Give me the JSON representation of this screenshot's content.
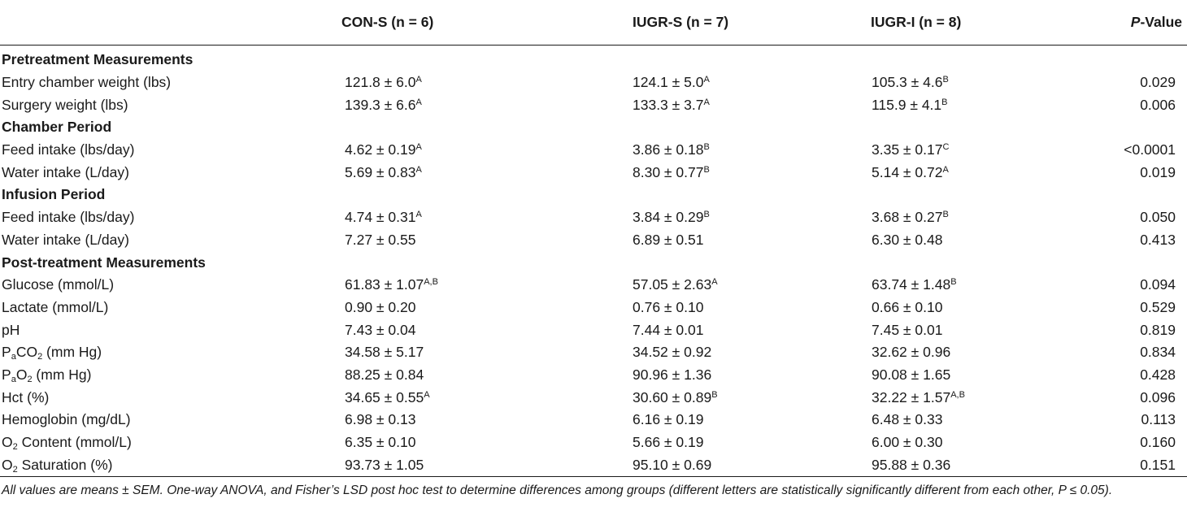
{
  "header": {
    "col_label": "",
    "col1": "CON-S (n = 6)",
    "col2": "IUGR-S (n = 7)",
    "col3": "IUGR-I (n = 8)",
    "col4_italic": "P",
    "col4_rest": "-Value"
  },
  "rows": [
    {
      "section": "Pretreatment Measurements"
    },
    {
      "label": "Entry chamber weight (lbs)",
      "v1": "121.8 ± 6.0",
      "s1": "A",
      "v2": "124.1 ± 5.0",
      "s2": "A",
      "v3": "105.3 ± 4.6",
      "s3": "B",
      "p": "0.029"
    },
    {
      "label": "Surgery weight (lbs)",
      "v1": "139.3 ± 6.6",
      "s1": "A",
      "v2": "133.3 ± 3.7",
      "s2": "A",
      "v3": "115.9 ± 4.1",
      "s3": "B",
      "p": "0.006"
    },
    {
      "section": "Chamber Period"
    },
    {
      "label": "Feed intake (lbs/day)",
      "v1": "4.62 ± 0.19",
      "s1": "A",
      "v2": "3.86 ± 0.18",
      "s2": "B",
      "v3": "3.35 ± 0.17",
      "s3": "C",
      "p": "<0.0001"
    },
    {
      "label": "Water intake (L/day)",
      "v1": "5.69 ± 0.83",
      "s1": "A",
      "v2": "8.30 ± 0.77",
      "s2": "B",
      "v3": "5.14 ± 0.72",
      "s3": "A",
      "p": "0.019"
    },
    {
      "section": "Infusion Period"
    },
    {
      "label": "Feed intake (lbs/day)",
      "v1": "4.74 ± 0.31",
      "s1": "A",
      "v2": "3.84 ± 0.29",
      "s2": "B",
      "v3": "3.68 ± 0.27",
      "s3": "B",
      "p": "0.050"
    },
    {
      "label": "Water intake (L/day)",
      "v1": "7.27 ± 0.55",
      "v2": "6.89 ± 0.51",
      "v3": "6.30 ± 0.48",
      "p": "0.413"
    },
    {
      "section": "Post-treatment Measurements"
    },
    {
      "label": "Glucose (mmol/L)",
      "v1": "61.83 ± 1.07",
      "s1": "A,B",
      "v2": "57.05 ± 2.63",
      "s2": "A",
      "v3": "63.74 ± 1.48",
      "s3": "B",
      "p": "0.094"
    },
    {
      "label": "Lactate (mmol/L)",
      "v1": "0.90 ± 0.20",
      "v2": "0.76 ± 0.10",
      "v3": "0.66 ± 0.10",
      "p": "0.529"
    },
    {
      "label": "pH",
      "v1": "7.43 ± 0.04",
      "v2": "7.44 ± 0.01",
      "v3": "7.45 ± 0.01",
      "p": "0.819"
    },
    {
      "label_parts": [
        [
          "P",
          ""
        ],
        [
          "a",
          "sub"
        ],
        [
          "CO",
          ""
        ],
        [
          "2",
          "sub"
        ],
        [
          " (mm Hg)",
          ""
        ]
      ],
      "v1": "34.58 ± 5.17",
      "v2": "34.52 ± 0.92",
      "v3": "32.62 ± 0.96",
      "p": "0.834"
    },
    {
      "label_parts": [
        [
          "P",
          ""
        ],
        [
          "a",
          "sub"
        ],
        [
          "O",
          ""
        ],
        [
          "2",
          "sub"
        ],
        [
          " (mm Hg)",
          ""
        ]
      ],
      "v1": "88.25 ± 0.84",
      "v2": "90.96 ± 1.36",
      "v3": "90.08 ± 1.65",
      "p": "0.428"
    },
    {
      "label": "Hct (%)",
      "v1": "34.65 ± 0.55",
      "s1": "A",
      "v2": "30.60 ± 0.89",
      "s2": "B",
      "v3": "32.22 ± 1.57",
      "s3": "A,B",
      "p": "0.096"
    },
    {
      "label": "Hemoglobin (mg/dL)",
      "v1": "6.98 ± 0.13",
      "v2": "6.16 ± 0.19",
      "v3": "6.48 ± 0.33",
      "p": "0.113"
    },
    {
      "label_parts": [
        [
          "O",
          ""
        ],
        [
          "2",
          "sub"
        ],
        [
          " Content (mmol/L)",
          ""
        ]
      ],
      "v1": "6.35 ± 0.10",
      "v2": "5.66 ± 0.19",
      "v3": "6.00 ± 0.30",
      "p": "0.160"
    },
    {
      "label_parts": [
        [
          "O",
          ""
        ],
        [
          "2",
          "sub"
        ],
        [
          " Saturation (%)",
          ""
        ]
      ],
      "v1": "93.73 ± 1.05",
      "v2": "95.10 ± 0.69",
      "v3": "95.88 ± 0.36",
      "p": "0.151"
    }
  ],
  "footnote": "All values are means ± SEM. One-way ANOVA, and Fisher’s LSD post hoc test to determine differences among groups (different letters are statistically significantly different from each other, P ≤ 0.05)."
}
